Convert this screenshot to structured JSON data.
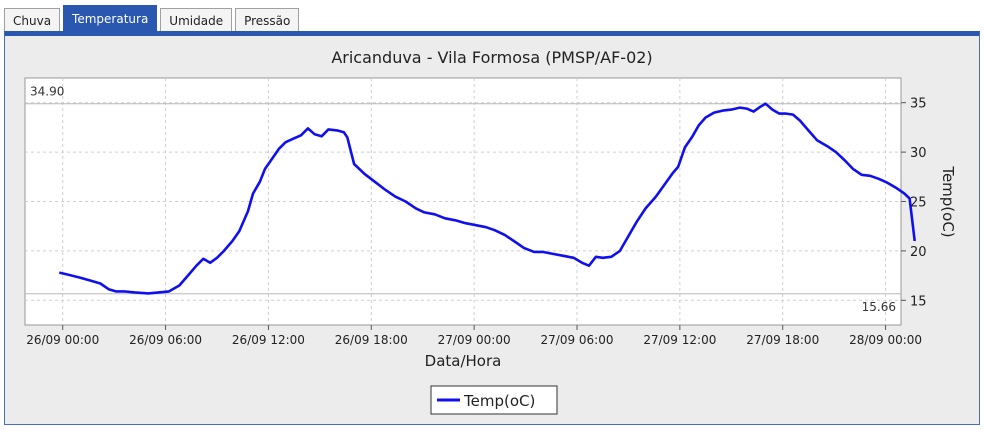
{
  "tabs": [
    {
      "label": "Chuva",
      "active": false
    },
    {
      "label": "Temperatura",
      "active": true
    },
    {
      "label": "Umidade",
      "active": false
    },
    {
      "label": "Pressão",
      "active": false
    }
  ],
  "colors": {
    "series": "#1010ee",
    "tab_active": "#2a58b0",
    "panel_bg": "#ececec",
    "grid": "#cfcfcf"
  },
  "chart_data": {
    "type": "line",
    "title": "Aricanduva - Vila Formosa (PMSP/AF-02)",
    "xlabel": "Data/Hora",
    "ylabel": "Temp(oC)",
    "ylim": [
      12.5,
      37.5
    ],
    "xlim_hours": [
      -2.2,
      48.9
    ],
    "yticks": [
      15,
      20,
      25,
      30,
      35
    ],
    "xticks": [
      {
        "h": 0,
        "label": "26/09 00:00"
      },
      {
        "h": 6,
        "label": "26/09 06:00"
      },
      {
        "h": 12,
        "label": "26/09 12:00"
      },
      {
        "h": 18,
        "label": "26/09 18:00"
      },
      {
        "h": 24,
        "label": "27/09 00:00"
      },
      {
        "h": 30,
        "label": "27/09 06:00"
      },
      {
        "h": 36,
        "label": "27/09 12:00"
      },
      {
        "h": 42,
        "label": "27/09 18:00"
      },
      {
        "h": 48,
        "label": "28/09 00:00"
      }
    ],
    "max_line": {
      "value": 34.9,
      "label": "34.90"
    },
    "min_line": {
      "value": 15.66,
      "label": "15.66"
    },
    "legend": "bottom",
    "grid": true,
    "series": [
      {
        "name": "Temp(oC)",
        "points": [
          [
            -0.2,
            17.8
          ],
          [
            0.3,
            17.6
          ],
          [
            1.0,
            17.3
          ],
          [
            1.6,
            17.0
          ],
          [
            2.2,
            16.7
          ],
          [
            2.7,
            16.1
          ],
          [
            3.1,
            15.9
          ],
          [
            3.6,
            15.9
          ],
          [
            4.2,
            15.8
          ],
          [
            5.0,
            15.7
          ],
          [
            5.6,
            15.8
          ],
          [
            6.2,
            15.9
          ],
          [
            6.8,
            16.5
          ],
          [
            7.3,
            17.5
          ],
          [
            7.8,
            18.5
          ],
          [
            8.2,
            19.2
          ],
          [
            8.6,
            18.8
          ],
          [
            9.0,
            19.3
          ],
          [
            9.4,
            20.0
          ],
          [
            9.9,
            21.0
          ],
          [
            10.3,
            22.0
          ],
          [
            10.8,
            24.0
          ],
          [
            11.1,
            25.8
          ],
          [
            11.5,
            27.0
          ],
          [
            11.8,
            28.3
          ],
          [
            12.2,
            29.3
          ],
          [
            12.6,
            30.3
          ],
          [
            13.0,
            31.0
          ],
          [
            13.5,
            31.4
          ],
          [
            13.9,
            31.7
          ],
          [
            14.3,
            32.4
          ],
          [
            14.7,
            31.8
          ],
          [
            15.1,
            31.6
          ],
          [
            15.5,
            32.3
          ],
          [
            16.0,
            32.2
          ],
          [
            16.4,
            32.0
          ],
          [
            16.6,
            31.5
          ],
          [
            17.0,
            28.8
          ],
          [
            17.6,
            27.8
          ],
          [
            18.2,
            27.0
          ],
          [
            18.8,
            26.2
          ],
          [
            19.4,
            25.5
          ],
          [
            20.0,
            25.0
          ],
          [
            20.6,
            24.3
          ],
          [
            21.1,
            23.9
          ],
          [
            21.7,
            23.7
          ],
          [
            22.3,
            23.3
          ],
          [
            22.9,
            23.1
          ],
          [
            23.5,
            22.8
          ],
          [
            24.1,
            22.6
          ],
          [
            24.7,
            22.4
          ],
          [
            25.2,
            22.1
          ],
          [
            25.8,
            21.6
          ],
          [
            26.4,
            20.9
          ],
          [
            26.9,
            20.3
          ],
          [
            27.5,
            19.9
          ],
          [
            28.0,
            19.9
          ],
          [
            28.6,
            19.7
          ],
          [
            29.2,
            19.5
          ],
          [
            29.8,
            19.3
          ],
          [
            30.3,
            18.8
          ],
          [
            30.7,
            18.5
          ],
          [
            31.1,
            19.4
          ],
          [
            31.5,
            19.3
          ],
          [
            32.0,
            19.4
          ],
          [
            32.5,
            20.0
          ],
          [
            33.0,
            21.5
          ],
          [
            33.5,
            23.0
          ],
          [
            34.0,
            24.3
          ],
          [
            34.6,
            25.5
          ],
          [
            35.1,
            26.7
          ],
          [
            35.6,
            27.9
          ],
          [
            35.9,
            28.5
          ],
          [
            36.3,
            30.5
          ],
          [
            36.7,
            31.5
          ],
          [
            37.1,
            32.7
          ],
          [
            37.5,
            33.5
          ],
          [
            38.0,
            34.0
          ],
          [
            38.5,
            34.2
          ],
          [
            39.0,
            34.3
          ],
          [
            39.5,
            34.5
          ],
          [
            39.9,
            34.4
          ],
          [
            40.3,
            34.1
          ],
          [
            40.7,
            34.6
          ],
          [
            41.0,
            34.9
          ],
          [
            41.4,
            34.3
          ],
          [
            41.8,
            33.9
          ],
          [
            42.2,
            33.9
          ],
          [
            42.6,
            33.8
          ],
          [
            43.0,
            33.2
          ],
          [
            43.5,
            32.2
          ],
          [
            44.0,
            31.2
          ],
          [
            44.6,
            30.6
          ],
          [
            45.1,
            30.0
          ],
          [
            45.6,
            29.2
          ],
          [
            46.1,
            28.3
          ],
          [
            46.6,
            27.7
          ],
          [
            47.1,
            27.6
          ],
          [
            47.6,
            27.3
          ],
          [
            48.1,
            26.9
          ],
          [
            48.6,
            26.4
          ],
          [
            49.1,
            25.8
          ],
          [
            49.4,
            25.3
          ],
          [
            49.7,
            21.0
          ]
        ]
      }
    ]
  }
}
